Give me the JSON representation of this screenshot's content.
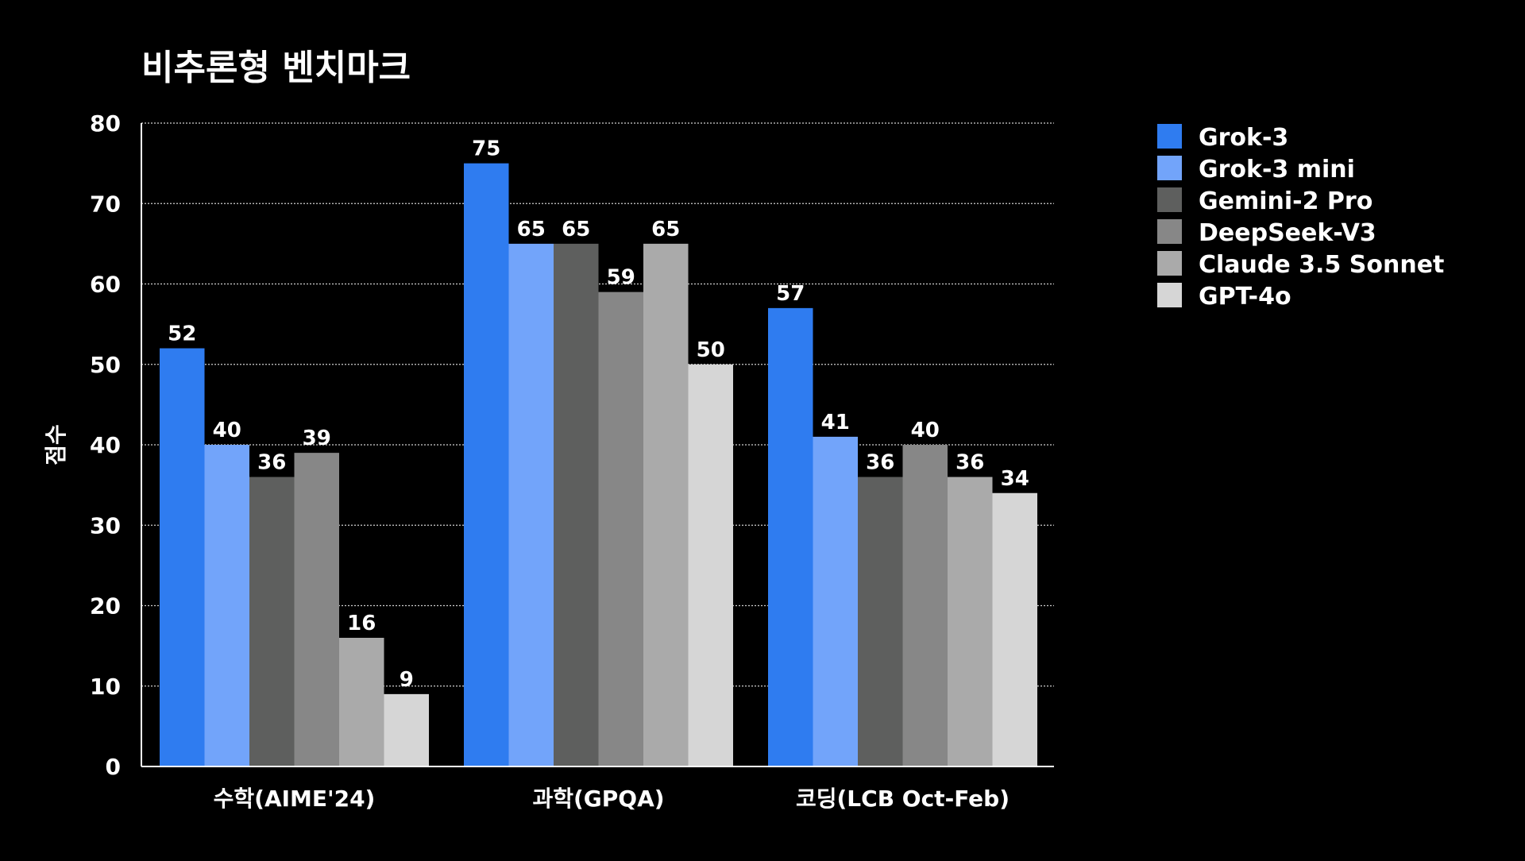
{
  "chart_data": {
    "type": "bar",
    "title": "비추론형 벤치마크",
    "xlabel": "",
    "ylabel": "점수",
    "ylim": [
      0,
      80
    ],
    "yticks": [
      0,
      10,
      20,
      30,
      40,
      50,
      60,
      70,
      80
    ],
    "grid": true,
    "legend_position": "right",
    "categories": [
      "수학(AIME'24)",
      "과학(GPQA)",
      "코딩(LCB Oct-Feb)"
    ],
    "series": [
      {
        "name": "Grok-3",
        "color": "#2f7cf0",
        "values": [
          52,
          75,
          57
        ]
      },
      {
        "name": "Grok-3 mini",
        "color": "#72a4fa",
        "values": [
          40,
          65,
          41
        ]
      },
      {
        "name": "Gemini-2 Pro",
        "color": "#5e5f5e",
        "values": [
          36,
          65,
          36
        ]
      },
      {
        "name": "DeepSeek-V3",
        "color": "#878787",
        "values": [
          39,
          59,
          40
        ]
      },
      {
        "name": "Claude 3.5 Sonnet",
        "color": "#aaaaaa",
        "values": [
          16,
          65,
          36
        ]
      },
      {
        "name": "GPT-4o",
        "color": "#d6d6d6",
        "values": [
          9,
          50,
          34
        ]
      }
    ]
  }
}
